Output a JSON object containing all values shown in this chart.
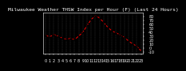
{
  "title": "Milwaukee Weather THSW Index per Hour (F) (Last 24 Hours)",
  "x": [
    0,
    1,
    2,
    3,
    4,
    5,
    6,
    7,
    8,
    9,
    10,
    11,
    12,
    13,
    14,
    15,
    16,
    17,
    18,
    19,
    20,
    21,
    22,
    23
  ],
  "y": [
    32,
    28,
    34,
    30,
    25,
    22,
    24,
    21,
    30,
    40,
    57,
    72,
    82,
    76,
    65,
    52,
    43,
    38,
    33,
    27,
    17,
    10,
    4,
    -8
  ],
  "line_color": "#ff0000",
  "marker_color": "#000000",
  "plot_bg": "#000000",
  "fig_bg": "#000000",
  "grid_color": "#555555",
  "title_color": "#ffffff",
  "tick_color": "#ffffff",
  "title_fontsize": 4.5,
  "tick_fontsize": 3.5,
  "ylim": [
    -15,
    90
  ],
  "xlim": [
    -0.5,
    23.5
  ],
  "yticks": [
    -10,
    0,
    10,
    20,
    30,
    40,
    50,
    60,
    70,
    80
  ],
  "xticks": [
    0,
    1,
    2,
    3,
    4,
    5,
    6,
    7,
    8,
    9,
    10,
    11,
    12,
    13,
    14,
    15,
    16,
    17,
    18,
    19,
    20,
    21,
    22,
    23
  ],
  "xtick_labels": [
    "0",
    "1",
    "2",
    "3",
    "4",
    "5",
    "6",
    "7",
    "8",
    "9",
    "10",
    "11",
    "12",
    "13",
    "14",
    "15",
    "16",
    "17",
    "18",
    "19",
    "20",
    "21",
    "22",
    "23"
  ]
}
